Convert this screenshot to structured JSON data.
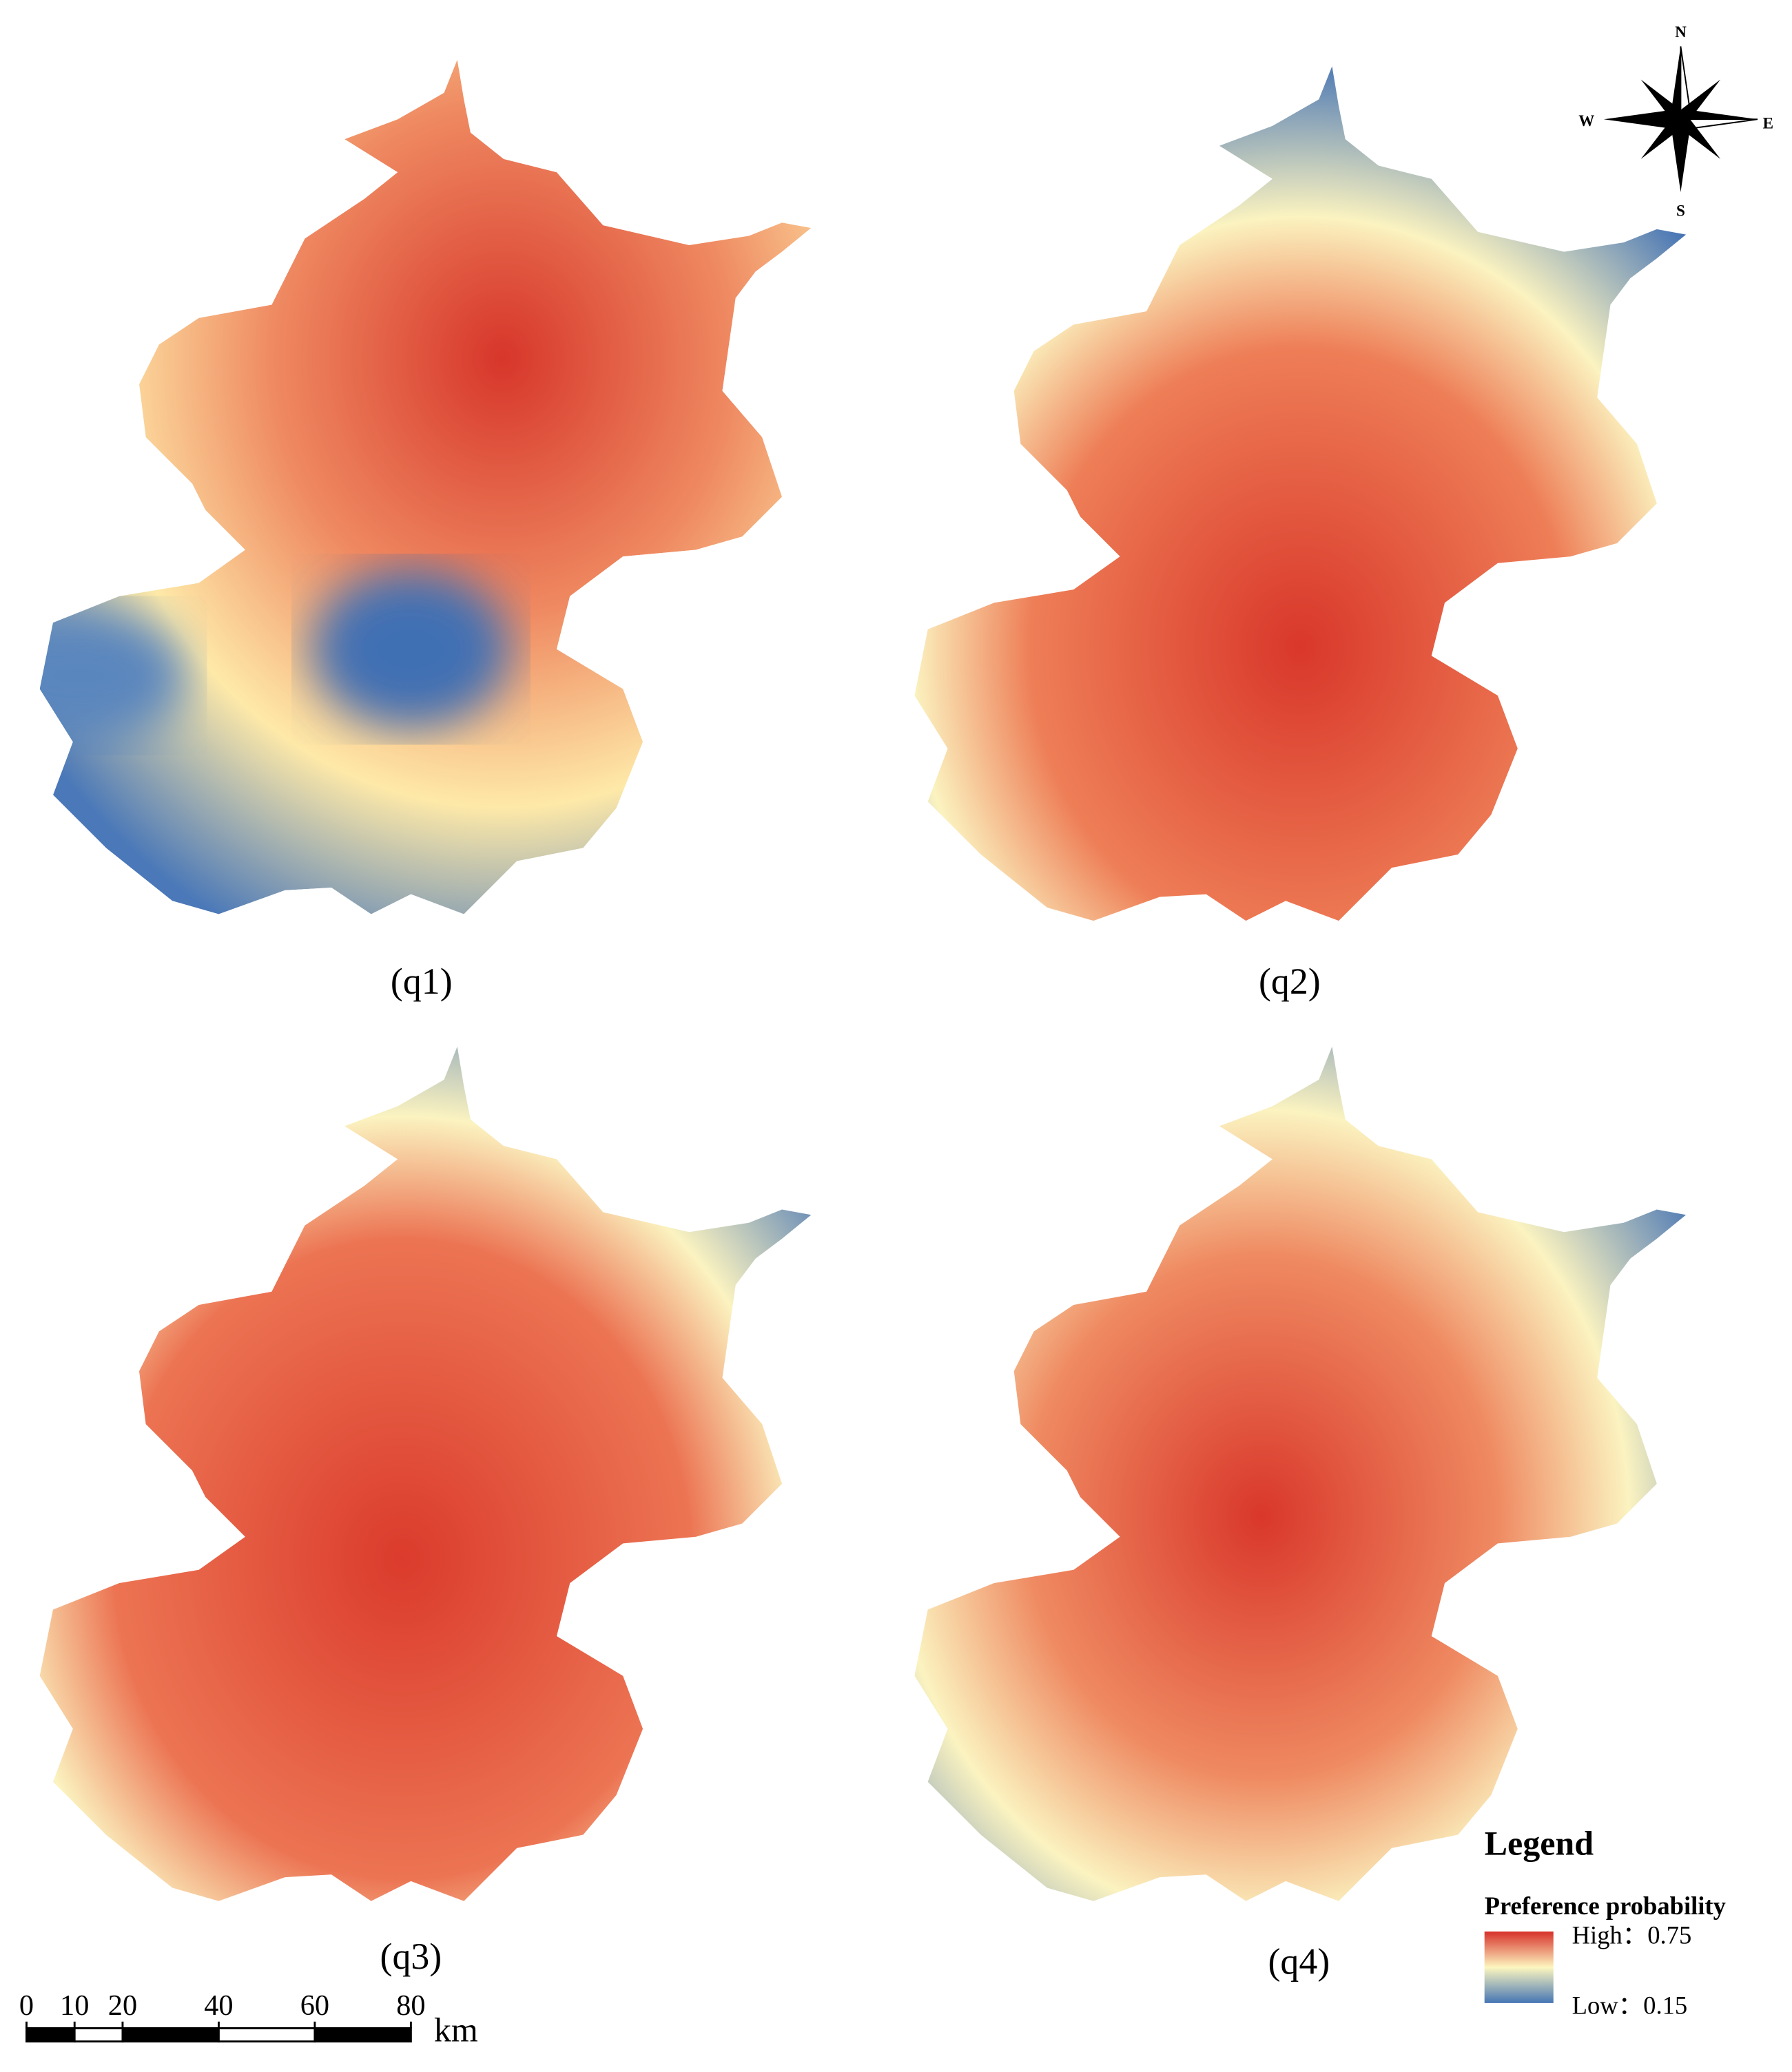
{
  "panels": [
    {
      "label": "(q1)"
    },
    {
      "label": "(q2)"
    },
    {
      "label": "(q3)"
    },
    {
      "label": "(q4)"
    }
  ],
  "compass": {
    "north": "N",
    "south": "S",
    "west": "W",
    "east": "E"
  },
  "scale_bar": {
    "ticks": [
      0,
      10,
      20,
      40,
      60,
      80
    ],
    "unit": "km"
  },
  "legend": {
    "title": "Legend",
    "subtitle": "Preference probability",
    "high": "High：0.75",
    "low": "Low：0.15"
  }
}
